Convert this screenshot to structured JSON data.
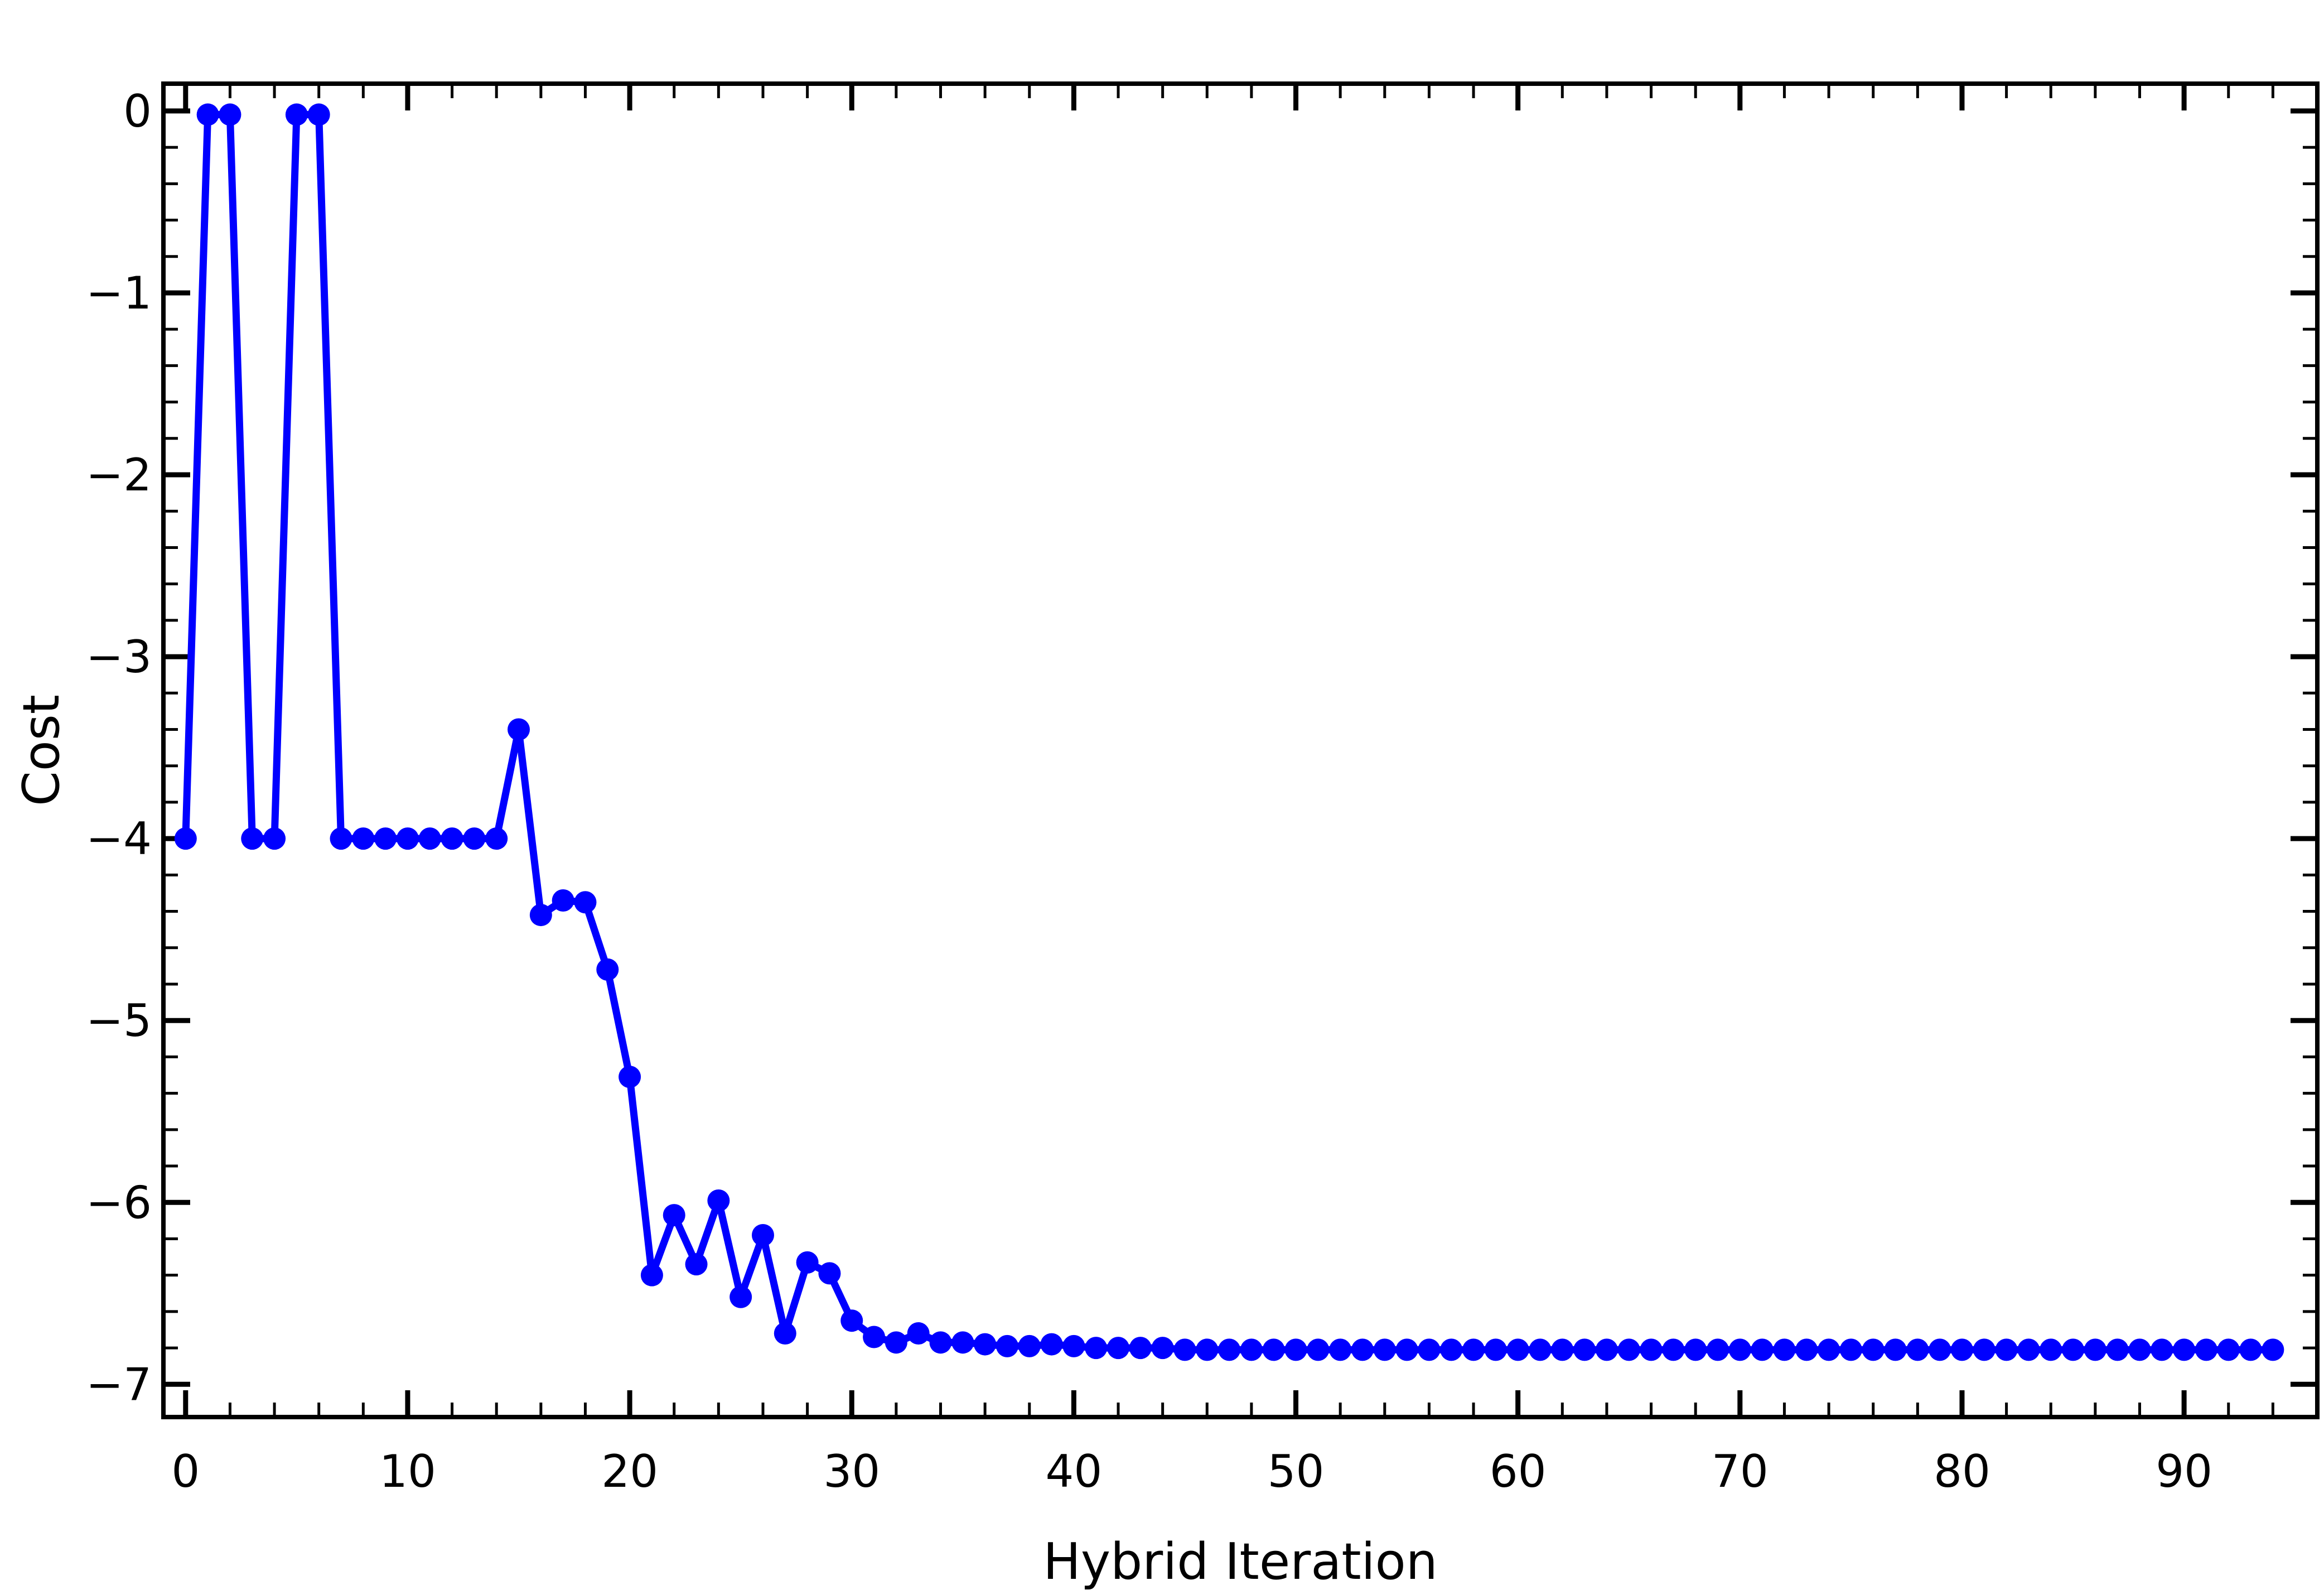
{
  "chart_data": {
    "type": "line",
    "title": "",
    "xlabel": "Hybrid Iteration",
    "ylabel": "Cost",
    "xlim": [
      -1,
      96
    ],
    "ylim": [
      -7.18,
      0.15
    ],
    "xticks": [
      0,
      10,
      20,
      30,
      40,
      50,
      60,
      70,
      80,
      90
    ],
    "xtick_labels": [
      "0",
      "10",
      "20",
      "30",
      "40",
      "50",
      "60",
      "70",
      "80",
      "90"
    ],
    "yticks": [
      0,
      -1,
      -2,
      -3,
      -4,
      -5,
      -6,
      -7
    ],
    "ytick_labels": [
      "0",
      "−1",
      "−2",
      "−3",
      "−4",
      "−5",
      "−6",
      "−7"
    ],
    "grid": false,
    "legend": "none",
    "series": [
      {
        "color": "#0000ff",
        "marker": "circle",
        "x": [
          0,
          1,
          2,
          3,
          4,
          5,
          6,
          7,
          8,
          9,
          10,
          11,
          12,
          13,
          14,
          15,
          16,
          17,
          18,
          19,
          20,
          21,
          22,
          23,
          24,
          25,
          26,
          27,
          28,
          29,
          30,
          31,
          32,
          33,
          34,
          35,
          36,
          37,
          38,
          39,
          40,
          41,
          42,
          43,
          44,
          45,
          46,
          47,
          48,
          49,
          50,
          51,
          52,
          53,
          54,
          55,
          56,
          57,
          58,
          59,
          60,
          61,
          62,
          63,
          64,
          65,
          66,
          67,
          68,
          69,
          70,
          71,
          72,
          73,
          74,
          75,
          76,
          77,
          78,
          79,
          80,
          81,
          82,
          83,
          84,
          85,
          86,
          87,
          88,
          89,
          90,
          91,
          92,
          93,
          94
        ],
        "values": [
          -4.0,
          -0.02,
          -0.02,
          -4.0,
          -4.0,
          -0.02,
          -0.02,
          -4.0,
          -4.0,
          -4.0,
          -4.0,
          -4.0,
          -4.0,
          -4.0,
          -4.0,
          -3.4,
          -4.42,
          -4.34,
          -4.35,
          -4.72,
          -5.31,
          -6.4,
          -6.07,
          -6.34,
          -5.99,
          -6.52,
          -6.18,
          -6.72,
          -6.33,
          -6.39,
          -6.65,
          -6.74,
          -6.77,
          -6.72,
          -6.77,
          -6.77,
          -6.78,
          -6.79,
          -6.79,
          -6.78,
          -6.79,
          -6.8,
          -6.8,
          -6.8,
          -6.8,
          -6.81,
          -6.81,
          -6.81,
          -6.81,
          -6.81,
          -6.81,
          -6.81,
          -6.81,
          -6.81,
          -6.81,
          -6.81,
          -6.81,
          -6.81,
          -6.81,
          -6.81,
          -6.81,
          -6.81,
          -6.81,
          -6.81,
          -6.81,
          -6.81,
          -6.81,
          -6.81,
          -6.81,
          -6.81,
          -6.81,
          -6.81,
          -6.81,
          -6.81,
          -6.81,
          -6.81,
          -6.81,
          -6.81,
          -6.81,
          -6.81,
          -6.81,
          -6.81,
          -6.81,
          -6.81,
          -6.81,
          -6.81,
          -6.81,
          -6.81,
          -6.81,
          -6.81,
          -6.81,
          -6.81,
          -6.81,
          -6.81,
          -6.81
        ]
      }
    ]
  }
}
